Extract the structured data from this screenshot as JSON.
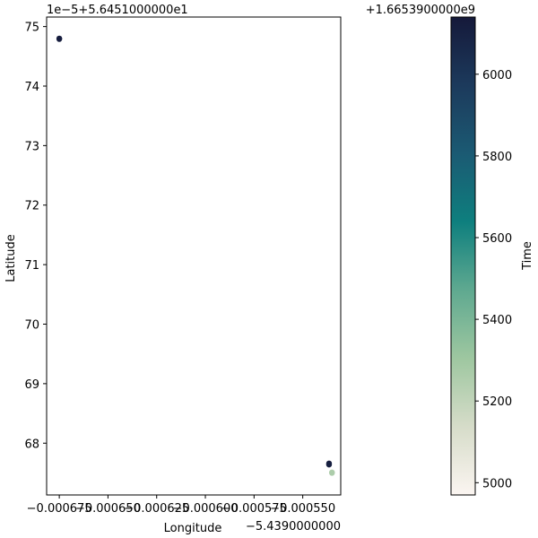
{
  "chart_data": {
    "type": "scatter",
    "xlabel": "Longitude",
    "ylabel": "Latitude",
    "x_offset_text": "−5.4390000000",
    "y_offset_text": "1e−5+5.6451000000e1",
    "x_ticks": [
      {
        "value": -0.000675,
        "label": "−0.000675"
      },
      {
        "value": -0.00065,
        "label": "−0.000650"
      },
      {
        "value": -0.000625,
        "label": "−0.000625"
      },
      {
        "value": -0.0006,
        "label": "−0.000600"
      },
      {
        "value": -0.000575,
        "label": "−0.000575"
      },
      {
        "value": -0.00055,
        "label": "−0.000550"
      }
    ],
    "y_ticks": [
      {
        "value": 68,
        "label": "68"
      },
      {
        "value": 69,
        "label": "69"
      },
      {
        "value": 70,
        "label": "70"
      },
      {
        "value": 71,
        "label": "71"
      },
      {
        "value": 72,
        "label": "72"
      },
      {
        "value": 73,
        "label": "73"
      },
      {
        "value": 74,
        "label": "74"
      },
      {
        "value": 75,
        "label": "75"
      }
    ],
    "xlim": [
      -0.0006815,
      -0.0005305
    ],
    "ylim": [
      67.13,
      75.16
    ],
    "points": [
      {
        "x": -0.000675,
        "y": 74.8,
        "t": 6130
      },
      {
        "x": -0.000675,
        "y": 74.79,
        "t": 6120
      },
      {
        "x": -0.0005365,
        "y": 67.66,
        "t": 6130
      },
      {
        "x": -0.0005365,
        "y": 67.64,
        "t": 6110
      },
      {
        "x": -0.000535,
        "y": 67.51,
        "t": 5240
      },
      {
        "x": -0.000535,
        "y": 67.5,
        "t": 5260
      }
    ],
    "colorbar": {
      "label": "Time",
      "offset_text": "+1.6653900000e9",
      "range": [
        4970,
        6140
      ],
      "ticks": [
        {
          "value": 5000,
          "label": "5000"
        },
        {
          "value": 5200,
          "label": "5200"
        },
        {
          "value": 5400,
          "label": "5400"
        },
        {
          "value": 5600,
          "label": "5600"
        },
        {
          "value": 5800,
          "label": "5800"
        },
        {
          "value": 6000,
          "label": "6000"
        }
      ],
      "colormap": [
        "#fbf5f1",
        "#d6dcc9",
        "#9ec7a0",
        "#5fa990",
        "#0e7f7e",
        "#1b5a73",
        "#1c3a5c",
        "#15193a"
      ]
    }
  }
}
